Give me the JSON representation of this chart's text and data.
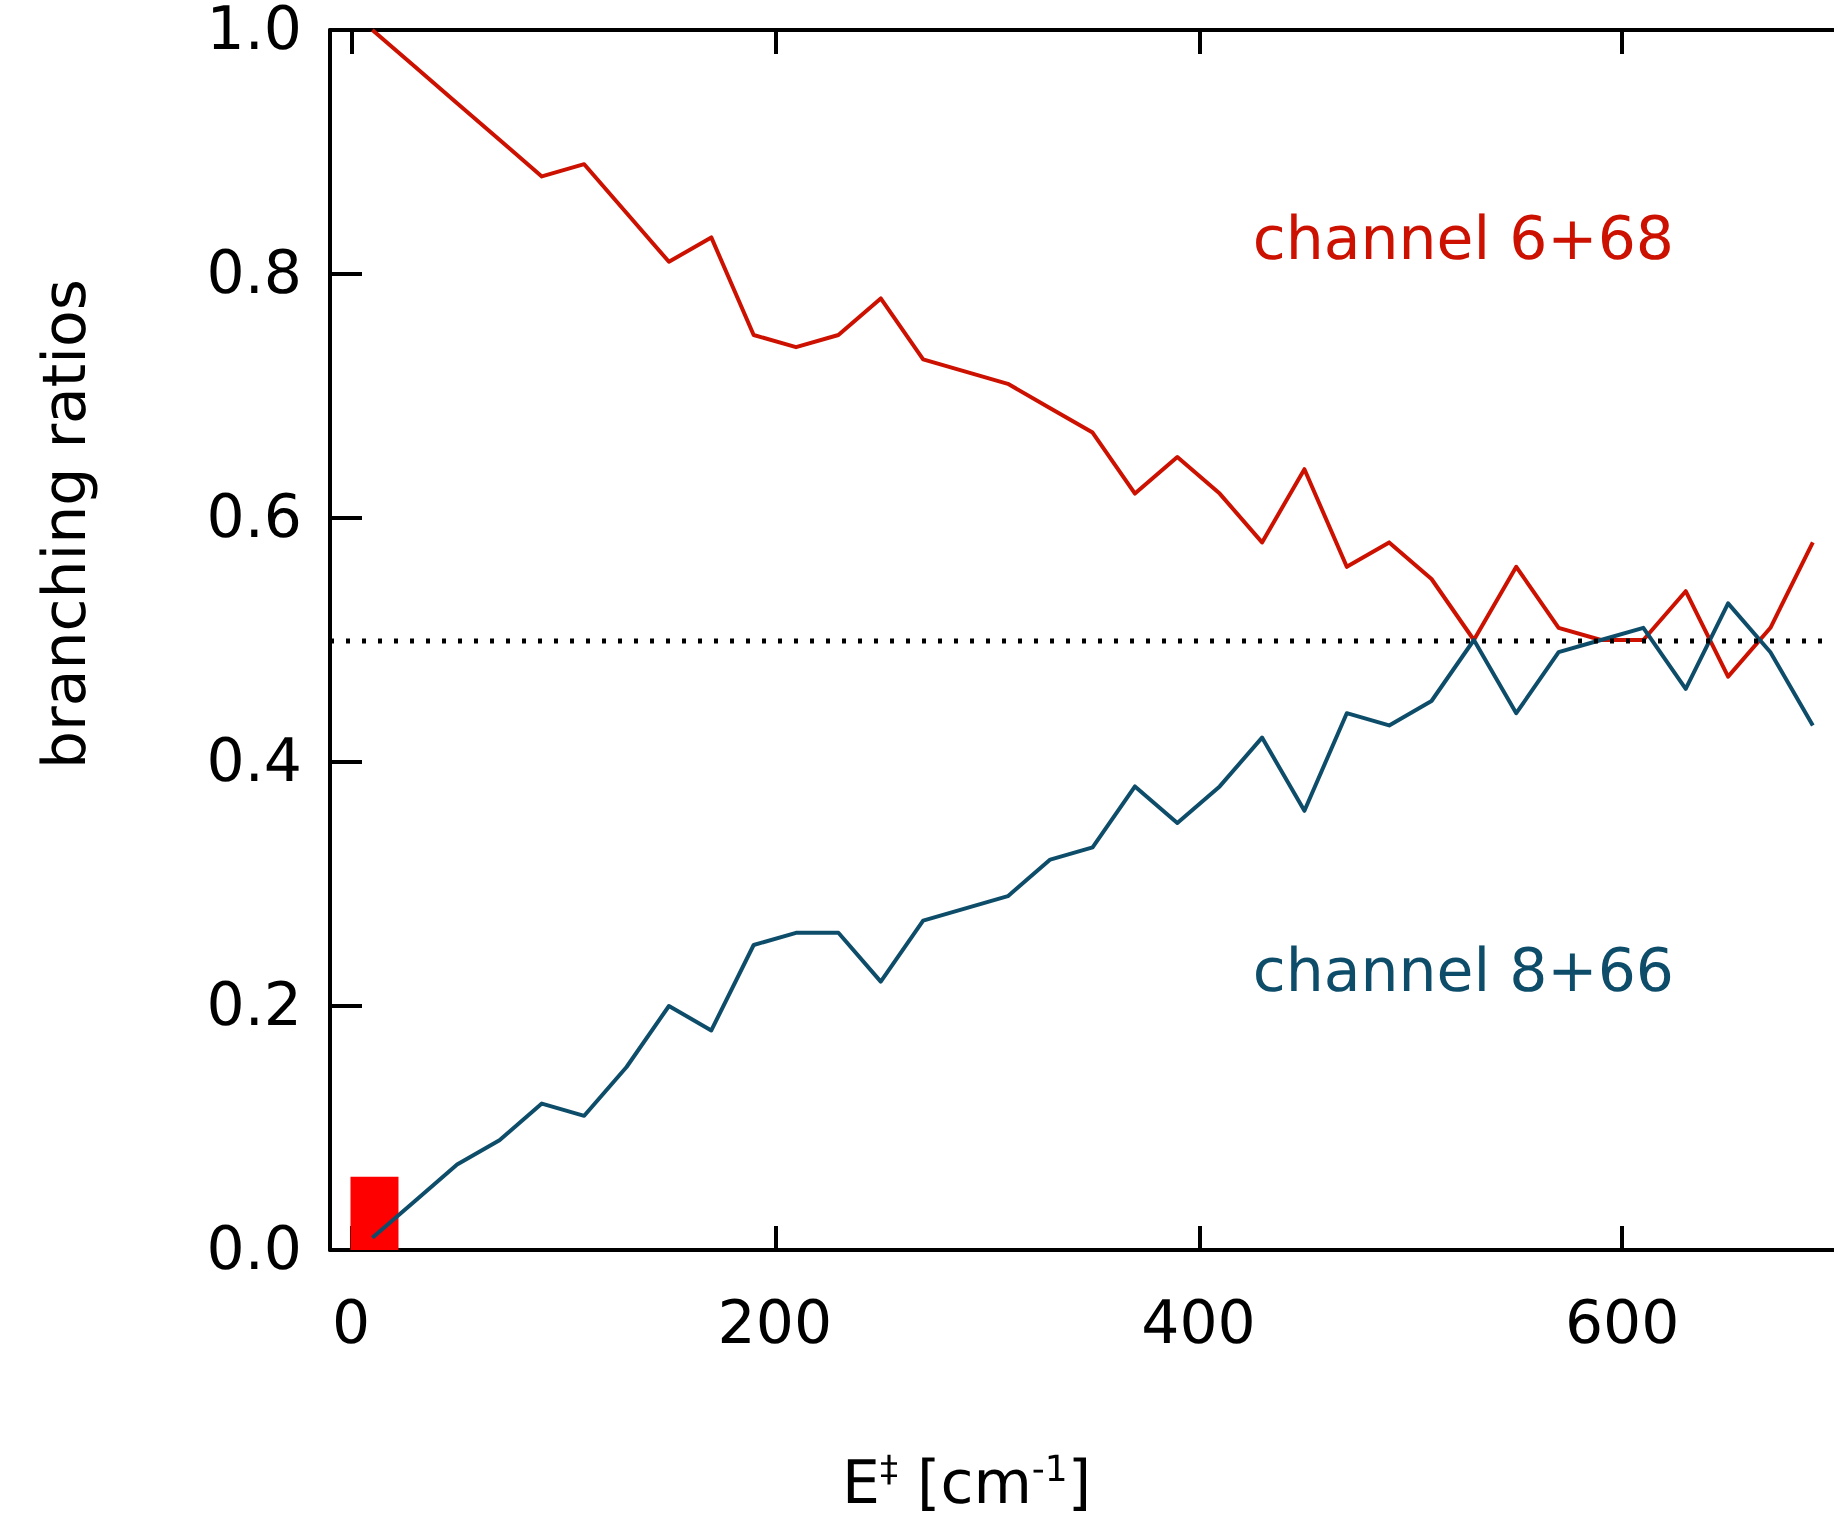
{
  "chart_data": {
    "type": "line",
    "xlabel": "E$^{‡}$ [cm$^{-1}$]",
    "ylabel": "branching ratios",
    "x": [
      10,
      30,
      50,
      70,
      90,
      110,
      130,
      150,
      170,
      190,
      210,
      230,
      250,
      270,
      290,
      310,
      330,
      350,
      370,
      390,
      410,
      430,
      450,
      470,
      490,
      510,
      530,
      550,
      570,
      590,
      610,
      630,
      650,
      670,
      690
    ],
    "series": [
      {
        "name": "channel 6+68",
        "color": "#cc1100",
        "values": [
          1.0,
          0.97,
          0.94,
          0.91,
          0.88,
          0.89,
          0.85,
          0.81,
          0.83,
          0.75,
          0.74,
          0.75,
          0.78,
          0.73,
          0.72,
          0.71,
          0.69,
          0.67,
          0.62,
          0.65,
          0.62,
          0.58,
          0.64,
          0.56,
          0.58,
          0.55,
          0.5,
          0.56,
          0.51,
          0.5,
          0.5,
          0.54,
          0.47,
          0.51,
          0.58
        ]
      },
      {
        "name": "channel 8+66",
        "color": "#0e4d6a",
        "values": [
          0.01,
          0.04,
          0.07,
          0.09,
          0.12,
          0.11,
          0.15,
          0.2,
          0.18,
          0.25,
          0.26,
          0.26,
          0.22,
          0.27,
          0.28,
          0.29,
          0.32,
          0.33,
          0.38,
          0.35,
          0.38,
          0.42,
          0.36,
          0.44,
          0.43,
          0.45,
          0.5,
          0.44,
          0.49,
          0.5,
          0.51,
          0.46,
          0.53,
          0.49,
          0.43
        ]
      },
      {
        "type": "bar",
        "color": "#ff0000",
        "x": [
          11
        ],
        "values": [
          0.06
        ]
      }
    ],
    "xlim": [
      -10,
      700
    ],
    "xticks": [
      0,
      200,
      400,
      600
    ],
    "ylim": [
      0,
      1.0
    ],
    "yticks": [
      {
        "value": 0,
        "label": "0.0"
      },
      {
        "value": 0.2,
        "label": "0.2"
      },
      {
        "value": 0.4,
        "label": "0.4"
      },
      {
        "value": 0.6,
        "label": "0.6"
      },
      {
        "value": 0.8,
        "label": "0.8"
      },
      {
        "value": 1.0,
        "label": "1.0"
      }
    ],
    "ref_lines": [
      {
        "axis": "y",
        "value": 0.5,
        "color": "#000000",
        "line_style": "dotted"
      }
    ],
    "grid": false,
    "legend": false,
    "marker": "none",
    "line_style": "solid"
  }
}
